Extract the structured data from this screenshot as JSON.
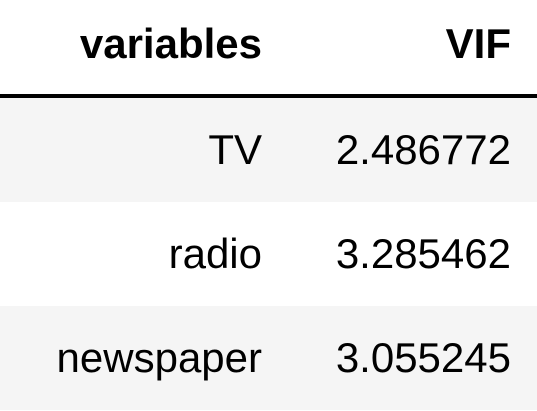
{
  "table": {
    "headers": {
      "variables": "variables",
      "vif": "VIF"
    },
    "rows": [
      {
        "variable": "TV",
        "vif": "2.486772"
      },
      {
        "variable": "radio",
        "vif": "3.285462"
      },
      {
        "variable": "newspaper",
        "vif": "3.055245"
      }
    ]
  },
  "colors": {
    "stripe": "#f5f5f5",
    "background": "#ffffff",
    "text": "#000000"
  }
}
